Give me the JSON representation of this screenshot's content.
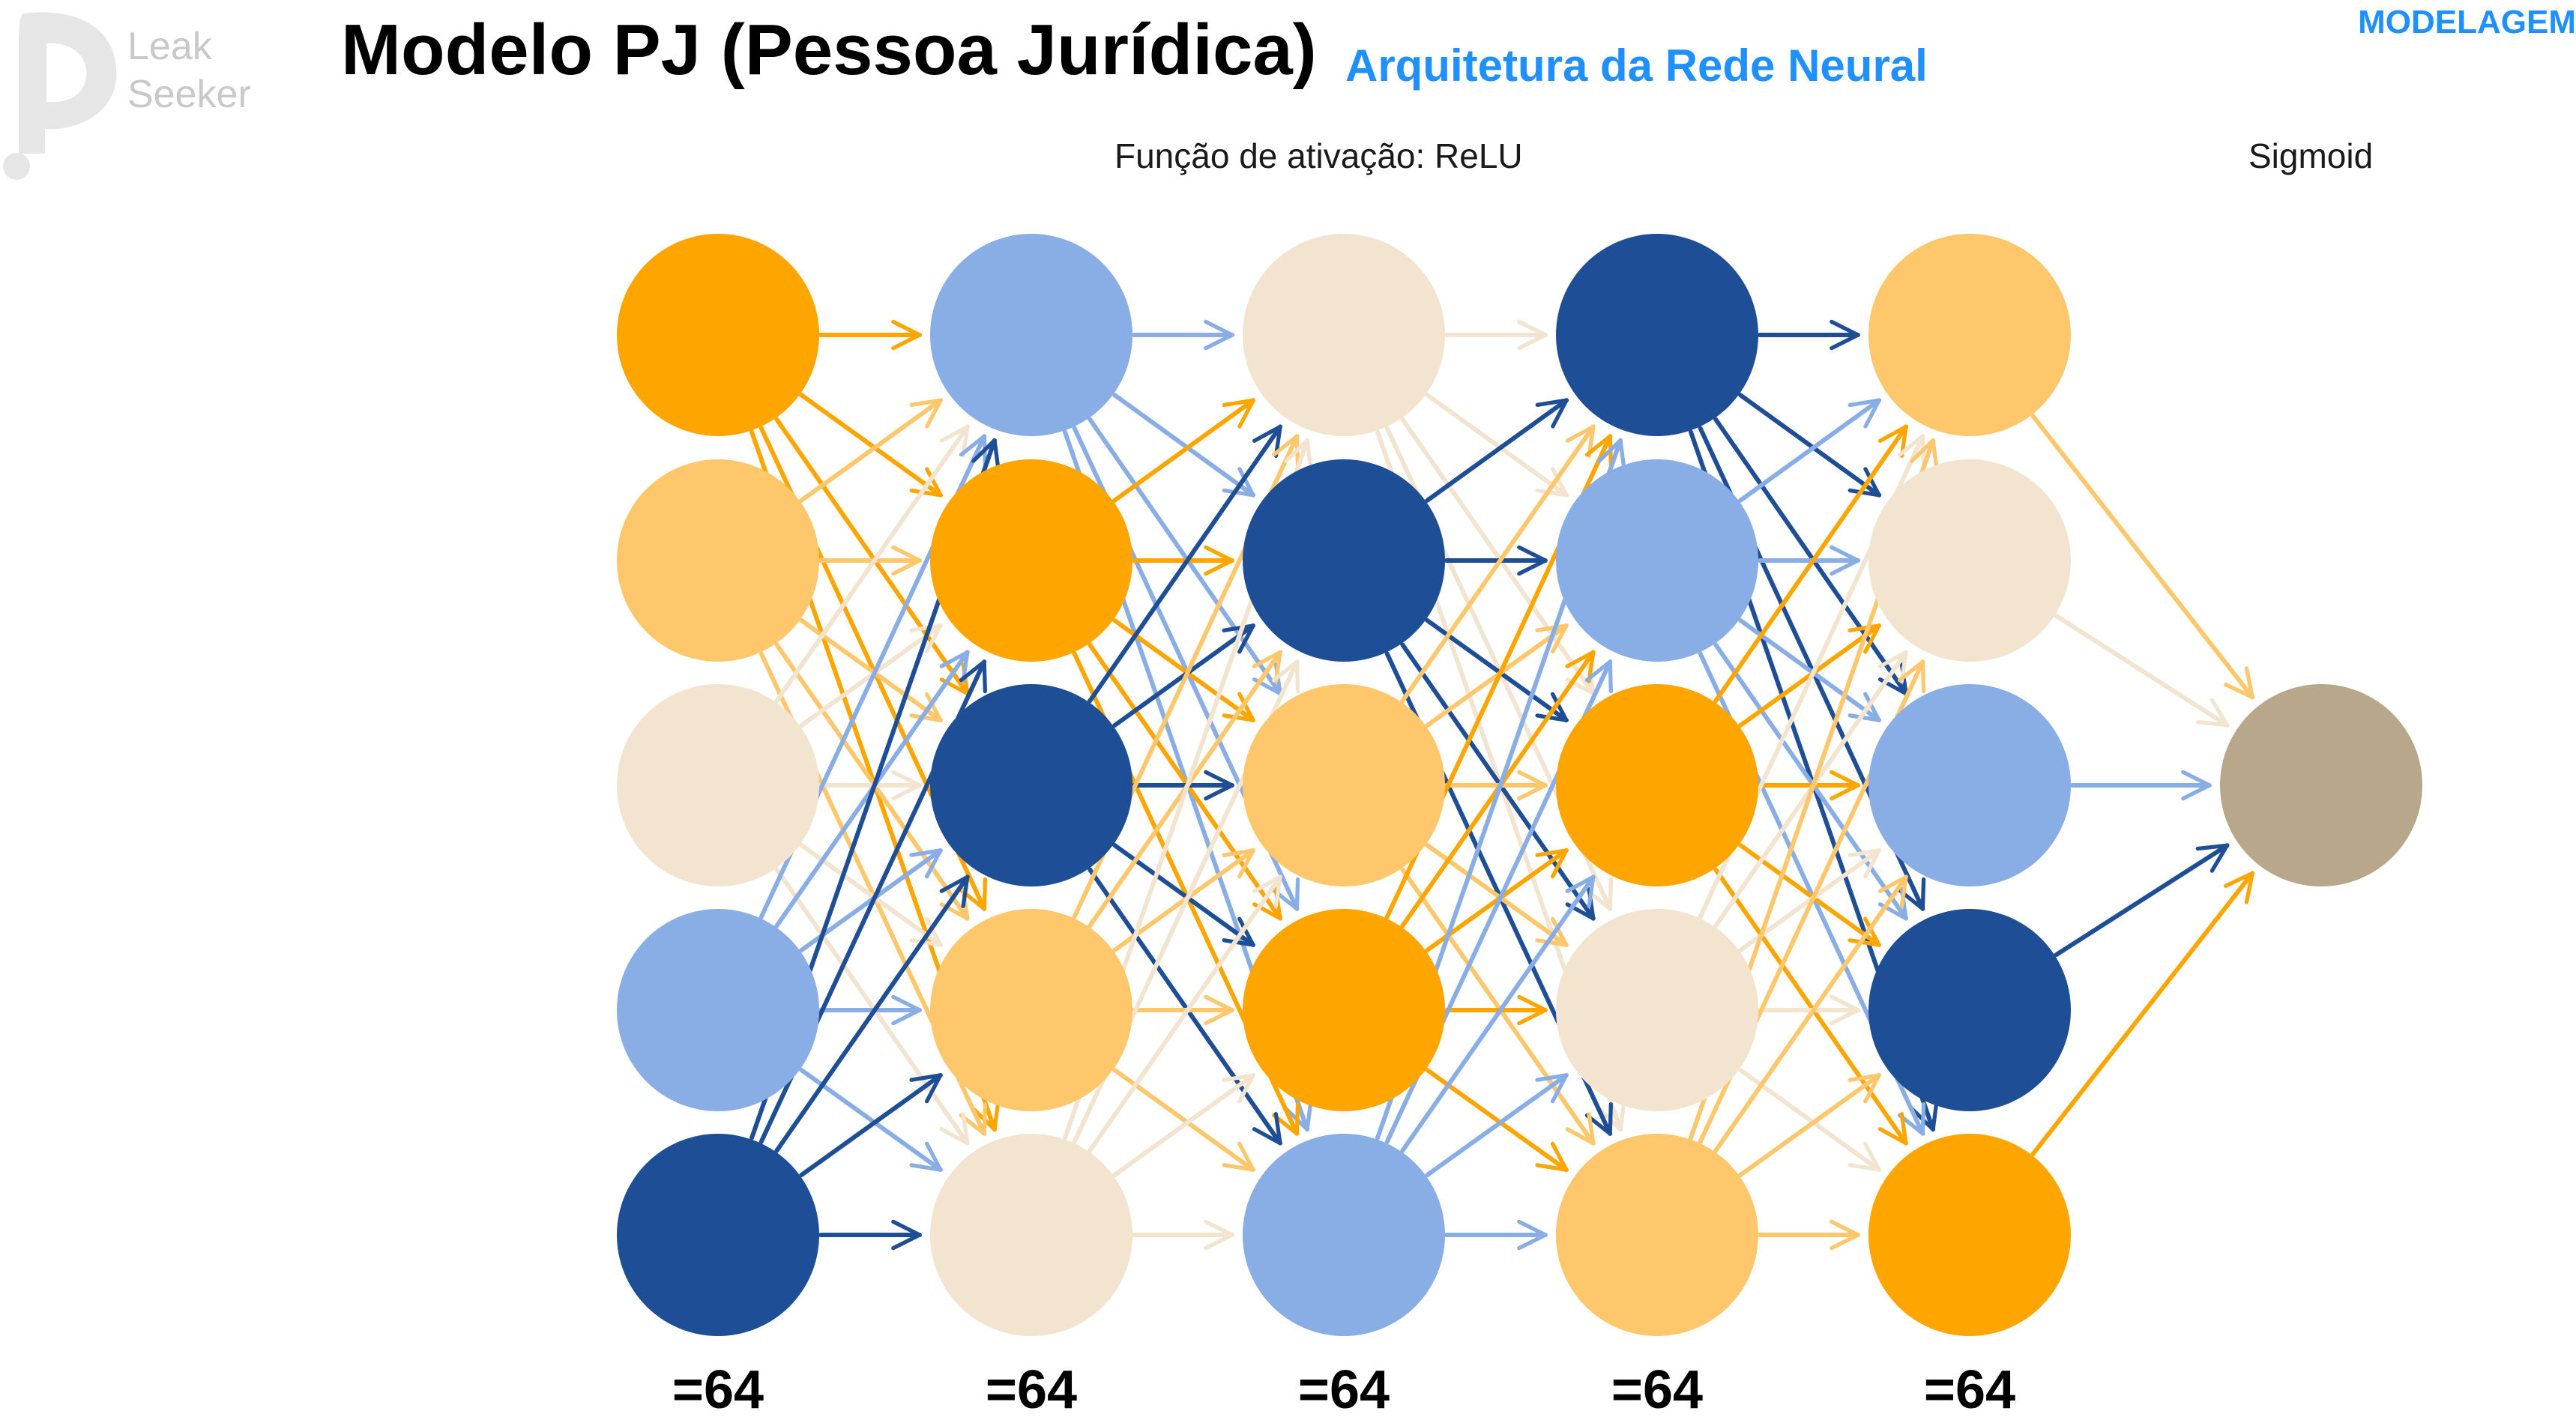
{
  "brand": {
    "line1": "Leak",
    "line2": "Seeker"
  },
  "header": {
    "title": "Modelo PJ (Pessoa Jurídica)",
    "subtitle": "Arquitetura da Rede Neural",
    "section_tag": "MODELAGEM"
  },
  "labels": {
    "hidden_activation": "Função de ativação: ReLU",
    "output_activation": "Sigmoid"
  },
  "layers": [
    {
      "size_label": "=64",
      "node_colors": [
        "#FFA500",
        "#FEC76B",
        "#F2E4CF",
        "#89AEE6",
        "#1E4E96"
      ]
    },
    {
      "size_label": "=64",
      "node_colors": [
        "#89AEE6",
        "#FFA500",
        "#1E4E96",
        "#FEC76B",
        "#F2E4CF"
      ]
    },
    {
      "size_label": "=64",
      "node_colors": [
        "#F2E4CF",
        "#1E4E96",
        "#FEC76B",
        "#FFA500",
        "#89AEE6"
      ]
    },
    {
      "size_label": "=64",
      "node_colors": [
        "#1E4E96",
        "#89AEE6",
        "#FFA500",
        "#F2E4CF",
        "#FEC76B"
      ]
    },
    {
      "size_label": "=64",
      "node_colors": [
        "#FEC76B",
        "#F2E4CF",
        "#89AEE6",
        "#1E4E96",
        "#FFA500"
      ]
    }
  ],
  "output_node": {
    "color": "#B8A78B"
  },
  "colors": {
    "dark_blue": "#1E4E96",
    "light_blue": "#89AEE6",
    "orange": "#FFA500",
    "light_orange": "#FEC76B",
    "cream": "#F2E4CF",
    "taupe": "#B8A78B",
    "accent": "#1E90FF"
  }
}
